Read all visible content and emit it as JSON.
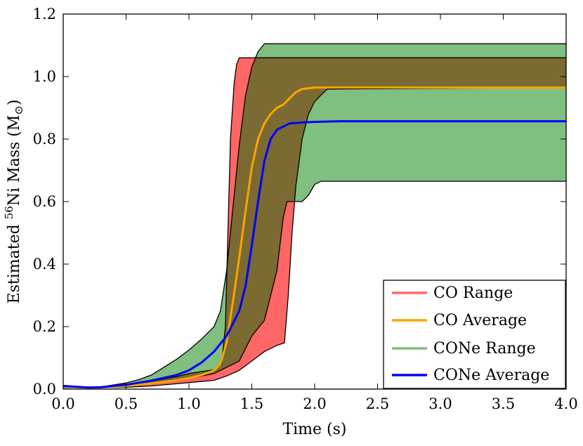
{
  "chart_data": {
    "type": "area",
    "title": "",
    "xlabel": "Time (s)",
    "ylabel_parts": {
      "prefix": "Estimated ",
      "sup": "56",
      "mid": "Ni Mass (M",
      "sub": "⊙",
      "suffix": ")"
    },
    "xlim": [
      0.0,
      4.0
    ],
    "ylim": [
      0.0,
      1.2
    ],
    "xticks": [
      0.0,
      0.5,
      1.0,
      1.5,
      2.0,
      2.5,
      3.0,
      3.5,
      4.0
    ],
    "xtick_labels": [
      "0.0",
      "0.5",
      "1.0",
      "1.5",
      "2.0",
      "2.5",
      "3.0",
      "3.5",
      "4.0"
    ],
    "yticks": [
      0.0,
      0.2,
      0.4,
      0.6,
      0.8,
      1.0,
      1.2
    ],
    "ytick_labels": [
      "0.0",
      "0.2",
      "0.4",
      "0.6",
      "0.8",
      "1.0",
      "1.2"
    ],
    "grid": false,
    "legend_position": "lower-right",
    "colors": {
      "co_range": "#ff6666",
      "co_average": "#ffa500",
      "cone_range": "#7fbf7f",
      "cone_average": "#0000ff",
      "overlap": "#7b6a31"
    },
    "series": [
      {
        "name": "CO Range",
        "kind": "band",
        "upper": {
          "x": [
            0.0,
            0.2,
            0.3,
            0.5,
            0.7,
            0.9,
            1.0,
            1.1,
            1.2,
            1.26,
            1.29,
            1.31,
            1.33,
            1.36,
            1.38,
            1.4,
            1.45,
            4.0
          ],
          "y": [
            0.01,
            0.005,
            0.006,
            0.012,
            0.025,
            0.04,
            0.05,
            0.056,
            0.062,
            0.08,
            0.2,
            0.5,
            0.8,
            0.98,
            1.04,
            1.06,
            1.06,
            1.06
          ]
        },
        "lower": {
          "x": [
            0.0,
            0.2,
            0.3,
            0.5,
            0.7,
            0.9,
            1.0,
            1.2,
            1.3,
            1.4,
            1.5,
            1.6,
            1.7,
            1.76,
            1.79,
            1.82,
            1.85,
            1.9,
            1.95,
            2.0,
            2.05,
            2.1,
            4.0
          ],
          "y": [
            0.005,
            0.004,
            0.004,
            0.006,
            0.01,
            0.017,
            0.021,
            0.028,
            0.042,
            0.06,
            0.09,
            0.12,
            0.14,
            0.148,
            0.3,
            0.5,
            0.65,
            0.8,
            0.88,
            0.92,
            0.94,
            0.96,
            0.965
          ]
        }
      },
      {
        "name": "CO Average",
        "kind": "line",
        "x": [
          0.0,
          0.2,
          0.3,
          0.5,
          0.7,
          0.9,
          1.0,
          1.1,
          1.2,
          1.25,
          1.3,
          1.35,
          1.4,
          1.45,
          1.5,
          1.55,
          1.6,
          1.65,
          1.7,
          1.75,
          1.8,
          1.85,
          1.9,
          2.0,
          2.1,
          4.0
        ],
        "y": [
          0.008,
          0.005,
          0.005,
          0.01,
          0.018,
          0.028,
          0.035,
          0.045,
          0.06,
          0.08,
          0.15,
          0.28,
          0.42,
          0.57,
          0.71,
          0.8,
          0.85,
          0.88,
          0.9,
          0.91,
          0.93,
          0.95,
          0.96,
          0.965,
          0.965,
          0.965
        ]
      },
      {
        "name": "CONe Range",
        "kind": "band",
        "upper": {
          "x": [
            0.0,
            0.2,
            0.3,
            0.5,
            0.6,
            0.7,
            0.8,
            0.9,
            1.0,
            1.1,
            1.2,
            1.25,
            1.3,
            1.35,
            1.4,
            1.45,
            1.5,
            1.55,
            1.6,
            2.0,
            4.0
          ],
          "y": [
            0.012,
            0.006,
            0.007,
            0.02,
            0.03,
            0.045,
            0.07,
            0.095,
            0.125,
            0.16,
            0.2,
            0.25,
            0.38,
            0.58,
            0.78,
            0.94,
            1.03,
            1.08,
            1.105,
            1.105,
            1.105
          ]
        },
        "lower": {
          "x": [
            0.0,
            0.2,
            0.3,
            0.5,
            0.7,
            0.9,
            1.0,
            1.2,
            1.4,
            1.5,
            1.6,
            1.7,
            1.75,
            1.78,
            1.85,
            1.9,
            1.95,
            2.0,
            2.05,
            2.1,
            4.0
          ],
          "y": [
            0.006,
            0.004,
            0.004,
            0.008,
            0.016,
            0.026,
            0.034,
            0.05,
            0.09,
            0.17,
            0.22,
            0.38,
            0.55,
            0.6,
            0.6,
            0.6,
            0.62,
            0.655,
            0.665,
            0.665,
            0.665
          ]
        }
      },
      {
        "name": "CONe Average",
        "kind": "line",
        "x": [
          0.0,
          0.2,
          0.3,
          0.5,
          0.7,
          0.9,
          1.0,
          1.1,
          1.2,
          1.3,
          1.4,
          1.45,
          1.5,
          1.55,
          1.6,
          1.65,
          1.7,
          1.75,
          1.8,
          1.9,
          2.0,
          2.2,
          4.0
        ],
        "y": [
          0.01,
          0.005,
          0.006,
          0.014,
          0.027,
          0.045,
          0.06,
          0.085,
          0.12,
          0.17,
          0.25,
          0.33,
          0.46,
          0.6,
          0.73,
          0.8,
          0.83,
          0.84,
          0.85,
          0.853,
          0.855,
          0.857,
          0.857
        ]
      }
    ]
  }
}
